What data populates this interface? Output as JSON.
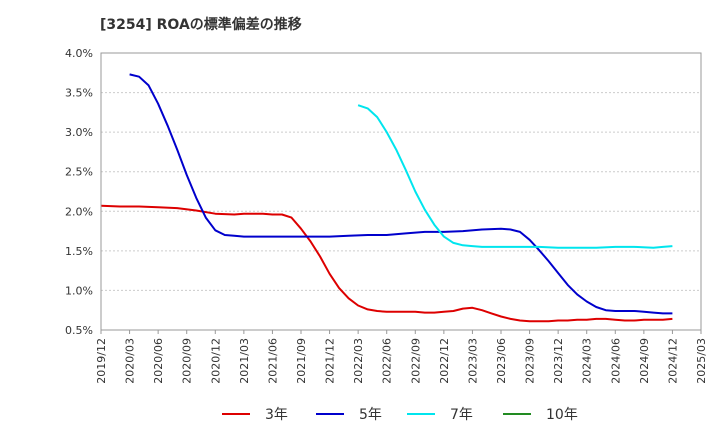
{
  "chart_data": {
    "type": "line",
    "title": "[3254]  ROAの標準偏差の推移",
    "xlabel": "",
    "ylabel": "",
    "ylim": [
      0.5,
      4.0
    ],
    "yticks": [
      "4.0%",
      "3.5%",
      "3.0%",
      "2.5%",
      "2.0%",
      "1.5%",
      "1.0%",
      "0.5%"
    ],
    "ytick_values": [
      4.0,
      3.5,
      3.0,
      2.5,
      2.0,
      1.5,
      1.0,
      0.5
    ],
    "xticks": [
      "2019/12",
      "2020/03",
      "2020/06",
      "2020/09",
      "2020/12",
      "2021/03",
      "2021/06",
      "2021/09",
      "2021/12",
      "2022/03",
      "2022/06",
      "2022/09",
      "2022/12",
      "2023/03",
      "2023/06",
      "2023/09",
      "2023/12",
      "2024/03",
      "2024/06",
      "2024/09",
      "2024/12",
      "2025/03"
    ],
    "x_range_months": [
      0,
      63
    ],
    "grid": "horizontal",
    "legend_position": "bottom",
    "series": [
      {
        "name": "3年",
        "color": "#dd0000",
        "x": [
          0,
          2,
          4,
          6,
          8,
          10,
          12,
          14,
          15,
          16,
          17,
          18,
          19,
          20,
          21,
          22,
          23,
          24,
          25,
          26,
          27,
          28,
          29,
          30,
          31,
          32,
          33,
          34,
          35,
          36,
          37,
          38,
          39,
          40,
          41,
          42,
          43,
          44,
          45,
          46,
          47,
          48,
          49,
          50,
          51,
          52,
          53,
          54,
          55,
          56,
          57,
          58,
          59,
          60
        ],
        "values": [
          2.07,
          2.06,
          2.06,
          2.05,
          2.04,
          2.01,
          1.97,
          1.96,
          1.97,
          1.97,
          1.97,
          1.96,
          1.96,
          1.92,
          1.78,
          1.62,
          1.43,
          1.21,
          1.03,
          0.9,
          0.81,
          0.76,
          0.74,
          0.73,
          0.73,
          0.73,
          0.73,
          0.72,
          0.72,
          0.73,
          0.74,
          0.77,
          0.78,
          0.75,
          0.71,
          0.67,
          0.64,
          0.62,
          0.61,
          0.61,
          0.61,
          0.62,
          0.62,
          0.63,
          0.63,
          0.64,
          0.64,
          0.63,
          0.62,
          0.62,
          0.63,
          0.63,
          0.63,
          0.64
        ]
      },
      {
        "name": "5年",
        "color": "#0000cc",
        "x": [
          3,
          4,
          5,
          6,
          7,
          8,
          9,
          10,
          11,
          12,
          13,
          14,
          15,
          16,
          17,
          18,
          19,
          20,
          21,
          22,
          24,
          26,
          28,
          30,
          32,
          34,
          36,
          38,
          40,
          42,
          43,
          44,
          45,
          46,
          47,
          48,
          49,
          50,
          51,
          52,
          53,
          54,
          55,
          56,
          57,
          58,
          59,
          60
        ],
        "values": [
          3.73,
          3.7,
          3.59,
          3.36,
          3.08,
          2.78,
          2.46,
          2.17,
          1.92,
          1.76,
          1.7,
          1.69,
          1.68,
          1.68,
          1.68,
          1.68,
          1.68,
          1.68,
          1.68,
          1.68,
          1.68,
          1.69,
          1.7,
          1.7,
          1.72,
          1.74,
          1.74,
          1.75,
          1.77,
          1.78,
          1.77,
          1.74,
          1.64,
          1.51,
          1.37,
          1.22,
          1.07,
          0.95,
          0.86,
          0.79,
          0.75,
          0.74,
          0.74,
          0.74,
          0.73,
          0.72,
          0.71,
          0.71
        ]
      },
      {
        "name": "7年",
        "color": "#00e5ee",
        "x": [
          27,
          28,
          29,
          30,
          31,
          32,
          33,
          34,
          35,
          36,
          37,
          38,
          39,
          40,
          41,
          42,
          43,
          44,
          46,
          48,
          50,
          52,
          54,
          56,
          58,
          59,
          60
        ],
        "values": [
          3.34,
          3.3,
          3.19,
          3.0,
          2.78,
          2.52,
          2.25,
          2.02,
          1.83,
          1.68,
          1.6,
          1.57,
          1.56,
          1.55,
          1.55,
          1.55,
          1.55,
          1.55,
          1.55,
          1.54,
          1.54,
          1.54,
          1.55,
          1.55,
          1.54,
          1.55,
          1.56
        ]
      },
      {
        "name": "10年",
        "color": "#228b22",
        "x": [],
        "values": []
      }
    ]
  }
}
